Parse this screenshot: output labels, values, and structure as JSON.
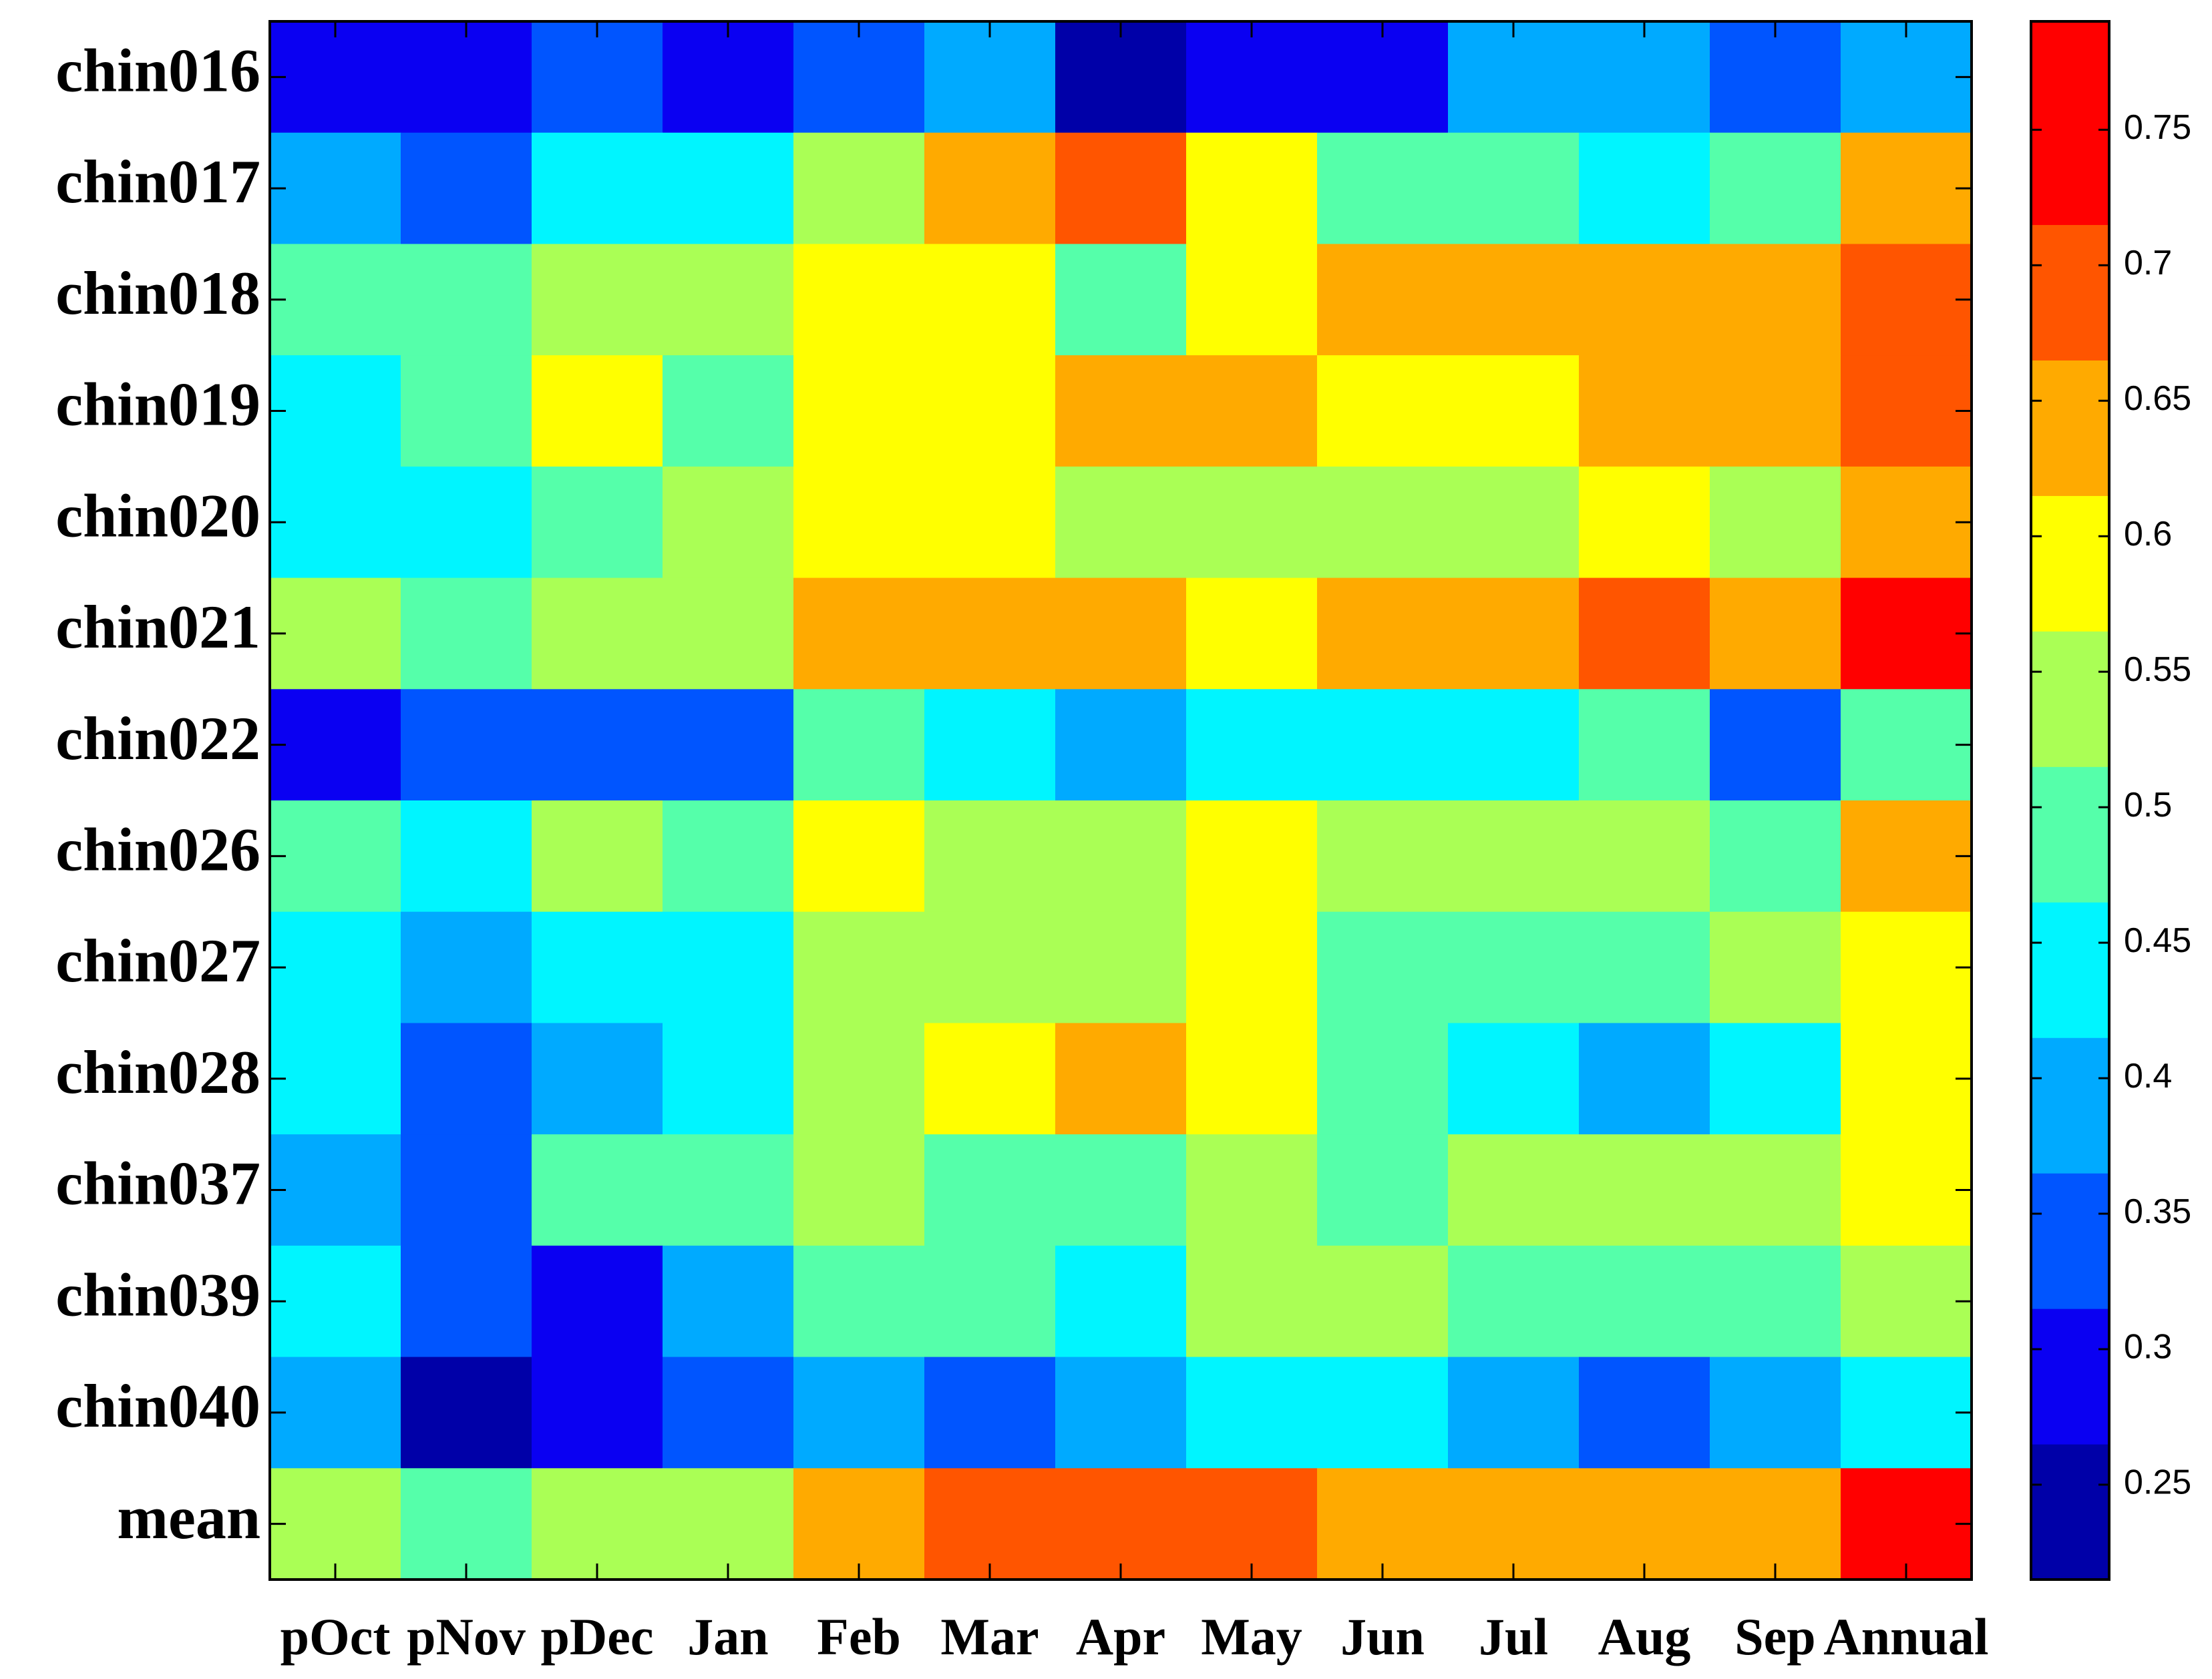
{
  "chart_data": {
    "type": "heatmap",
    "title": "",
    "xlabel": "",
    "ylabel": "",
    "x": [
      "pOct",
      "pNov",
      "pDec",
      "Jan",
      "Feb",
      "Mar",
      "Apr",
      "May",
      "Jun",
      "Jul",
      "Aug",
      "Sep",
      "Annual"
    ],
    "y": [
      "chin016",
      "chin017",
      "chin018",
      "chin019",
      "chin020",
      "chin021",
      "chin022",
      "chin026",
      "chin027",
      "chin028",
      "chin037",
      "chin039",
      "chin040",
      "mean"
    ],
    "values": [
      [
        0.3,
        0.3,
        0.35,
        0.3,
        0.35,
        0.4,
        0.25,
        0.3,
        0.3,
        0.4,
        0.4,
        0.35,
        0.4
      ],
      [
        0.4,
        0.35,
        0.45,
        0.45,
        0.55,
        0.65,
        0.7,
        0.6,
        0.5,
        0.5,
        0.45,
        0.5,
        0.65
      ],
      [
        0.5,
        0.5,
        0.55,
        0.55,
        0.6,
        0.6,
        0.5,
        0.6,
        0.65,
        0.65,
        0.65,
        0.65,
        0.7
      ],
      [
        0.45,
        0.5,
        0.6,
        0.5,
        0.6,
        0.6,
        0.65,
        0.65,
        0.6,
        0.6,
        0.65,
        0.65,
        0.7
      ],
      [
        0.45,
        0.45,
        0.5,
        0.55,
        0.6,
        0.6,
        0.55,
        0.55,
        0.55,
        0.55,
        0.6,
        0.55,
        0.65
      ],
      [
        0.55,
        0.5,
        0.55,
        0.55,
        0.65,
        0.65,
        0.65,
        0.6,
        0.65,
        0.65,
        0.7,
        0.65,
        0.75
      ],
      [
        0.3,
        0.35,
        0.35,
        0.35,
        0.5,
        0.45,
        0.4,
        0.45,
        0.45,
        0.45,
        0.5,
        0.35,
        0.5
      ],
      [
        0.5,
        0.45,
        0.55,
        0.5,
        0.6,
        0.55,
        0.55,
        0.6,
        0.55,
        0.55,
        0.55,
        0.5,
        0.65
      ],
      [
        0.45,
        0.4,
        0.45,
        0.45,
        0.55,
        0.55,
        0.55,
        0.6,
        0.5,
        0.5,
        0.5,
        0.55,
        0.6
      ],
      [
        0.45,
        0.35,
        0.4,
        0.45,
        0.55,
        0.6,
        0.65,
        0.6,
        0.5,
        0.45,
        0.4,
        0.45,
        0.6
      ],
      [
        0.4,
        0.35,
        0.5,
        0.5,
        0.55,
        0.5,
        0.5,
        0.55,
        0.5,
        0.55,
        0.55,
        0.55,
        0.6
      ],
      [
        0.45,
        0.35,
        0.3,
        0.4,
        0.5,
        0.5,
        0.45,
        0.55,
        0.55,
        0.5,
        0.5,
        0.5,
        0.55
      ],
      [
        0.4,
        0.25,
        0.3,
        0.35,
        0.4,
        0.35,
        0.4,
        0.45,
        0.45,
        0.4,
        0.35,
        0.4,
        0.45
      ],
      [
        0.55,
        0.5,
        0.55,
        0.55,
        0.65,
        0.7,
        0.7,
        0.7,
        0.65,
        0.65,
        0.65,
        0.65,
        0.75
      ]
    ],
    "colorbar": {
      "range": [
        0.215,
        0.79
      ],
      "ticks": [
        0.25,
        0.3,
        0.35,
        0.4,
        0.45,
        0.5,
        0.55,
        0.6,
        0.65,
        0.7,
        0.75
      ],
      "tick_labels": [
        "0.25",
        "0.3",
        "0.35",
        "0.4",
        "0.45",
        "0.5",
        "0.55",
        "0.6",
        "0.65",
        "0.7",
        "0.75"
      ],
      "bins": [
        {
          "min": 0.215,
          "max": 0.265,
          "color": "#0000a8"
        },
        {
          "min": 0.265,
          "max": 0.315,
          "color": "#0a00f2"
        },
        {
          "min": 0.315,
          "max": 0.365,
          "color": "#0055ff"
        },
        {
          "min": 0.365,
          "max": 0.415,
          "color": "#00aaff"
        },
        {
          "min": 0.415,
          "max": 0.465,
          "color": "#00f5ff"
        },
        {
          "min": 0.465,
          "max": 0.515,
          "color": "#55ffaa"
        },
        {
          "min": 0.515,
          "max": 0.565,
          "color": "#aaff55"
        },
        {
          "min": 0.565,
          "max": 0.615,
          "color": "#ffff00"
        },
        {
          "min": 0.615,
          "max": 0.665,
          "color": "#ffaa00"
        },
        {
          "min": 0.665,
          "max": 0.715,
          "color": "#ff5500"
        },
        {
          "min": 0.715,
          "max": 0.79,
          "color": "#ff0000"
        }
      ]
    }
  }
}
